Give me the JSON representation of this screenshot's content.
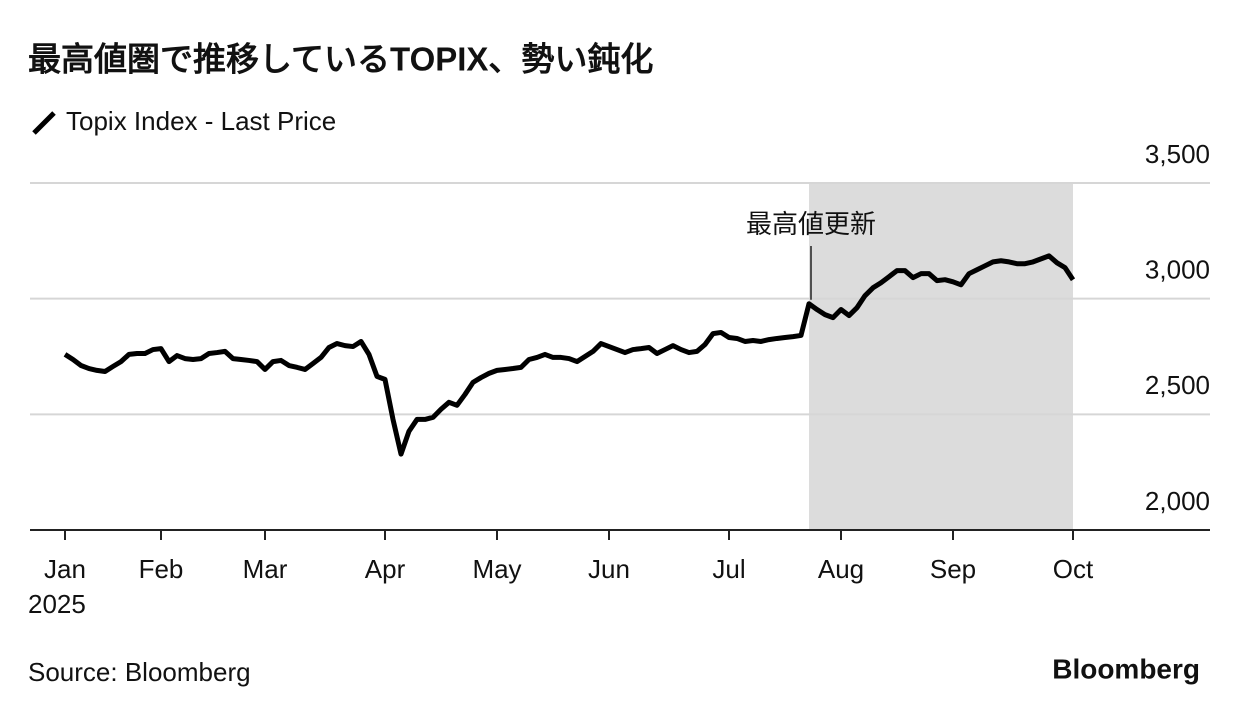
{
  "chart_data": {
    "type": "line",
    "title": "最高値圏で推移しているTOPIX、勢い鈍化",
    "source": "Source: Bloomberg",
    "brand": "Bloomberg",
    "x_year_label": "2025",
    "categories": [
      "Jan",
      null,
      null,
      null,
      null,
      null,
      null,
      null,
      null,
      null,
      null,
      null,
      "Feb",
      null,
      null,
      null,
      null,
      null,
      null,
      null,
      null,
      null,
      null,
      null,
      null,
      "Mar",
      null,
      null,
      null,
      null,
      null,
      null,
      null,
      null,
      null,
      null,
      null,
      null,
      null,
      null,
      "Apr",
      null,
      null,
      null,
      null,
      null,
      null,
      null,
      null,
      null,
      null,
      null,
      null,
      null,
      "May",
      null,
      null,
      null,
      null,
      null,
      null,
      null,
      null,
      null,
      null,
      null,
      null,
      null,
      "Jun",
      null,
      null,
      null,
      null,
      null,
      null,
      null,
      null,
      null,
      null,
      null,
      null,
      null,
      null,
      "Jul",
      null,
      null,
      null,
      null,
      null,
      null,
      null,
      null,
      null,
      null,
      null,
      null,
      null,
      "Aug",
      null,
      null,
      null,
      null,
      null,
      null,
      null,
      null,
      null,
      null,
      null,
      null,
      null,
      "Sep",
      null,
      null,
      null,
      null,
      null,
      null,
      null,
      null,
      null,
      null,
      null,
      null,
      null,
      null,
      "Oct"
    ],
    "series": [
      {
        "name": "Topix Index - Last Price",
        "color": "#000000",
        "values": [
          2759,
          2737,
          2711,
          2698,
          2690,
          2685,
          2707,
          2728,
          2759,
          2763,
          2763,
          2780,
          2784,
          2728,
          2754,
          2741,
          2737,
          2741,
          2763,
          2767,
          2772,
          2741,
          2737,
          2733,
          2728,
          2694,
          2728,
          2733,
          2711,
          2703,
          2694,
          2720,
          2746,
          2789,
          2806,
          2797,
          2793,
          2815,
          2759,
          2664,
          2651,
          2478,
          2328,
          2427,
          2478,
          2478,
          2487,
          2522,
          2552,
          2539,
          2586,
          2638,
          2659,
          2677,
          2690,
          2694,
          2698,
          2703,
          2737,
          2746,
          2759,
          2746,
          2746,
          2741,
          2728,
          2750,
          2772,
          2806,
          2793,
          2780,
          2767,
          2780,
          2784,
          2789,
          2763,
          2780,
          2797,
          2780,
          2767,
          2772,
          2802,
          2849,
          2854,
          2832,
          2828,
          2815,
          2819,
          2815,
          2823,
          2828,
          2832,
          2836,
          2841,
          2978,
          2953,
          2931,
          2918,
          2953,
          2927,
          2961,
          3013,
          3047,
          3069,
          3095,
          3121,
          3121,
          3091,
          3108,
          3108,
          3078,
          3082,
          3073,
          3060,
          3108,
          3125,
          3142,
          3159,
          3164,
          3159,
          3151,
          3151,
          3159,
          3172,
          3185,
          3155,
          3134,
          3082
        ]
      }
    ],
    "annotation": {
      "text": "最高値更新",
      "at": 93,
      "shade_color": "#dcdcdc"
    },
    "ylim": [
      2000,
      3500
    ],
    "yticks": [
      {
        "value": 2000,
        "label": "2,000"
      },
      {
        "value": 2500,
        "label": "2,500"
      },
      {
        "value": 3000,
        "label": "3,000"
      },
      {
        "value": 3500,
        "label": "3,500"
      }
    ],
    "grid": true
  }
}
